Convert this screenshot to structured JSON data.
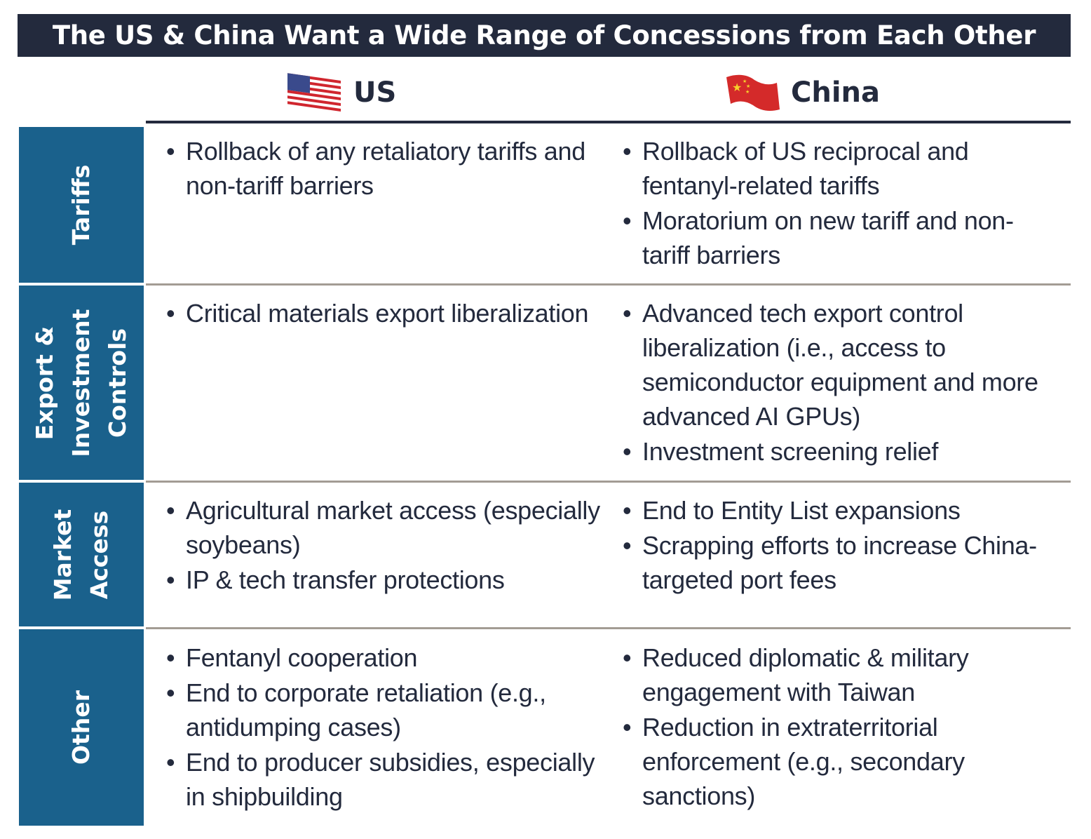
{
  "title": "The US & China Want a Wide Range of Concessions from Each Other",
  "columns": [
    {
      "label": "US",
      "icon": "us-flag-icon"
    },
    {
      "label": "China",
      "icon": "china-flag-icon"
    }
  ],
  "colors": {
    "title_bg": "#232a3d",
    "label_bg": "#1a618c",
    "separator": "#a39c94",
    "text": "#232a3d"
  },
  "rows": [
    {
      "label": "Tariffs",
      "us": [
        "Rollback of any retaliatory tariffs and non-tariff barriers"
      ],
      "china": [
        "Rollback of US reciprocal and fentanyl-related tariffs",
        "Moratorium on new tariff and non-tariff barriers"
      ]
    },
    {
      "label": "Export & Investment Controls",
      "label_lines": [
        "Export &",
        "Investment",
        "Controls"
      ],
      "us": [
        "Critical materials export liberalization"
      ],
      "china": [
        "Advanced tech export control liberalization (i.e., access to semiconductor equipment and more advanced AI GPUs)",
        "Investment screening relief"
      ]
    },
    {
      "label": "Market Access",
      "label_lines": [
        "Market",
        "Access"
      ],
      "us": [
        "Agricultural market access (especially soybeans)",
        "IP & tech transfer protections"
      ],
      "china": [
        "End to Entity List expansions",
        "Scrapping efforts to increase China-targeted port fees"
      ]
    },
    {
      "label": "Other",
      "us": [
        "Fentanyl cooperation",
        "End to corporate retaliation (e.g., antidumping cases)",
        "End to producer subsidies, especially in shipbuilding"
      ],
      "china": [
        "Reduced diplomatic & military engagement with Taiwan",
        "Reduction in extraterritorial enforcement (e.g., secondary sanctions)"
      ]
    }
  ]
}
